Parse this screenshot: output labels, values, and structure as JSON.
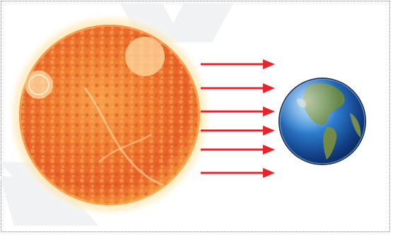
{
  "scene": {
    "sun_icon": "sun",
    "earth_icon": "earth-globe",
    "arrow_icon": "right-arrow",
    "arrow_count": 6,
    "colors": {
      "frame_border": "#d9534f",
      "arrow": "#e8232a",
      "sun_core": "#f0702a",
      "sun_glow": "#ffd27a",
      "earth_ocean": "#1f63b8",
      "earth_land": "#6b8a3a"
    }
  }
}
